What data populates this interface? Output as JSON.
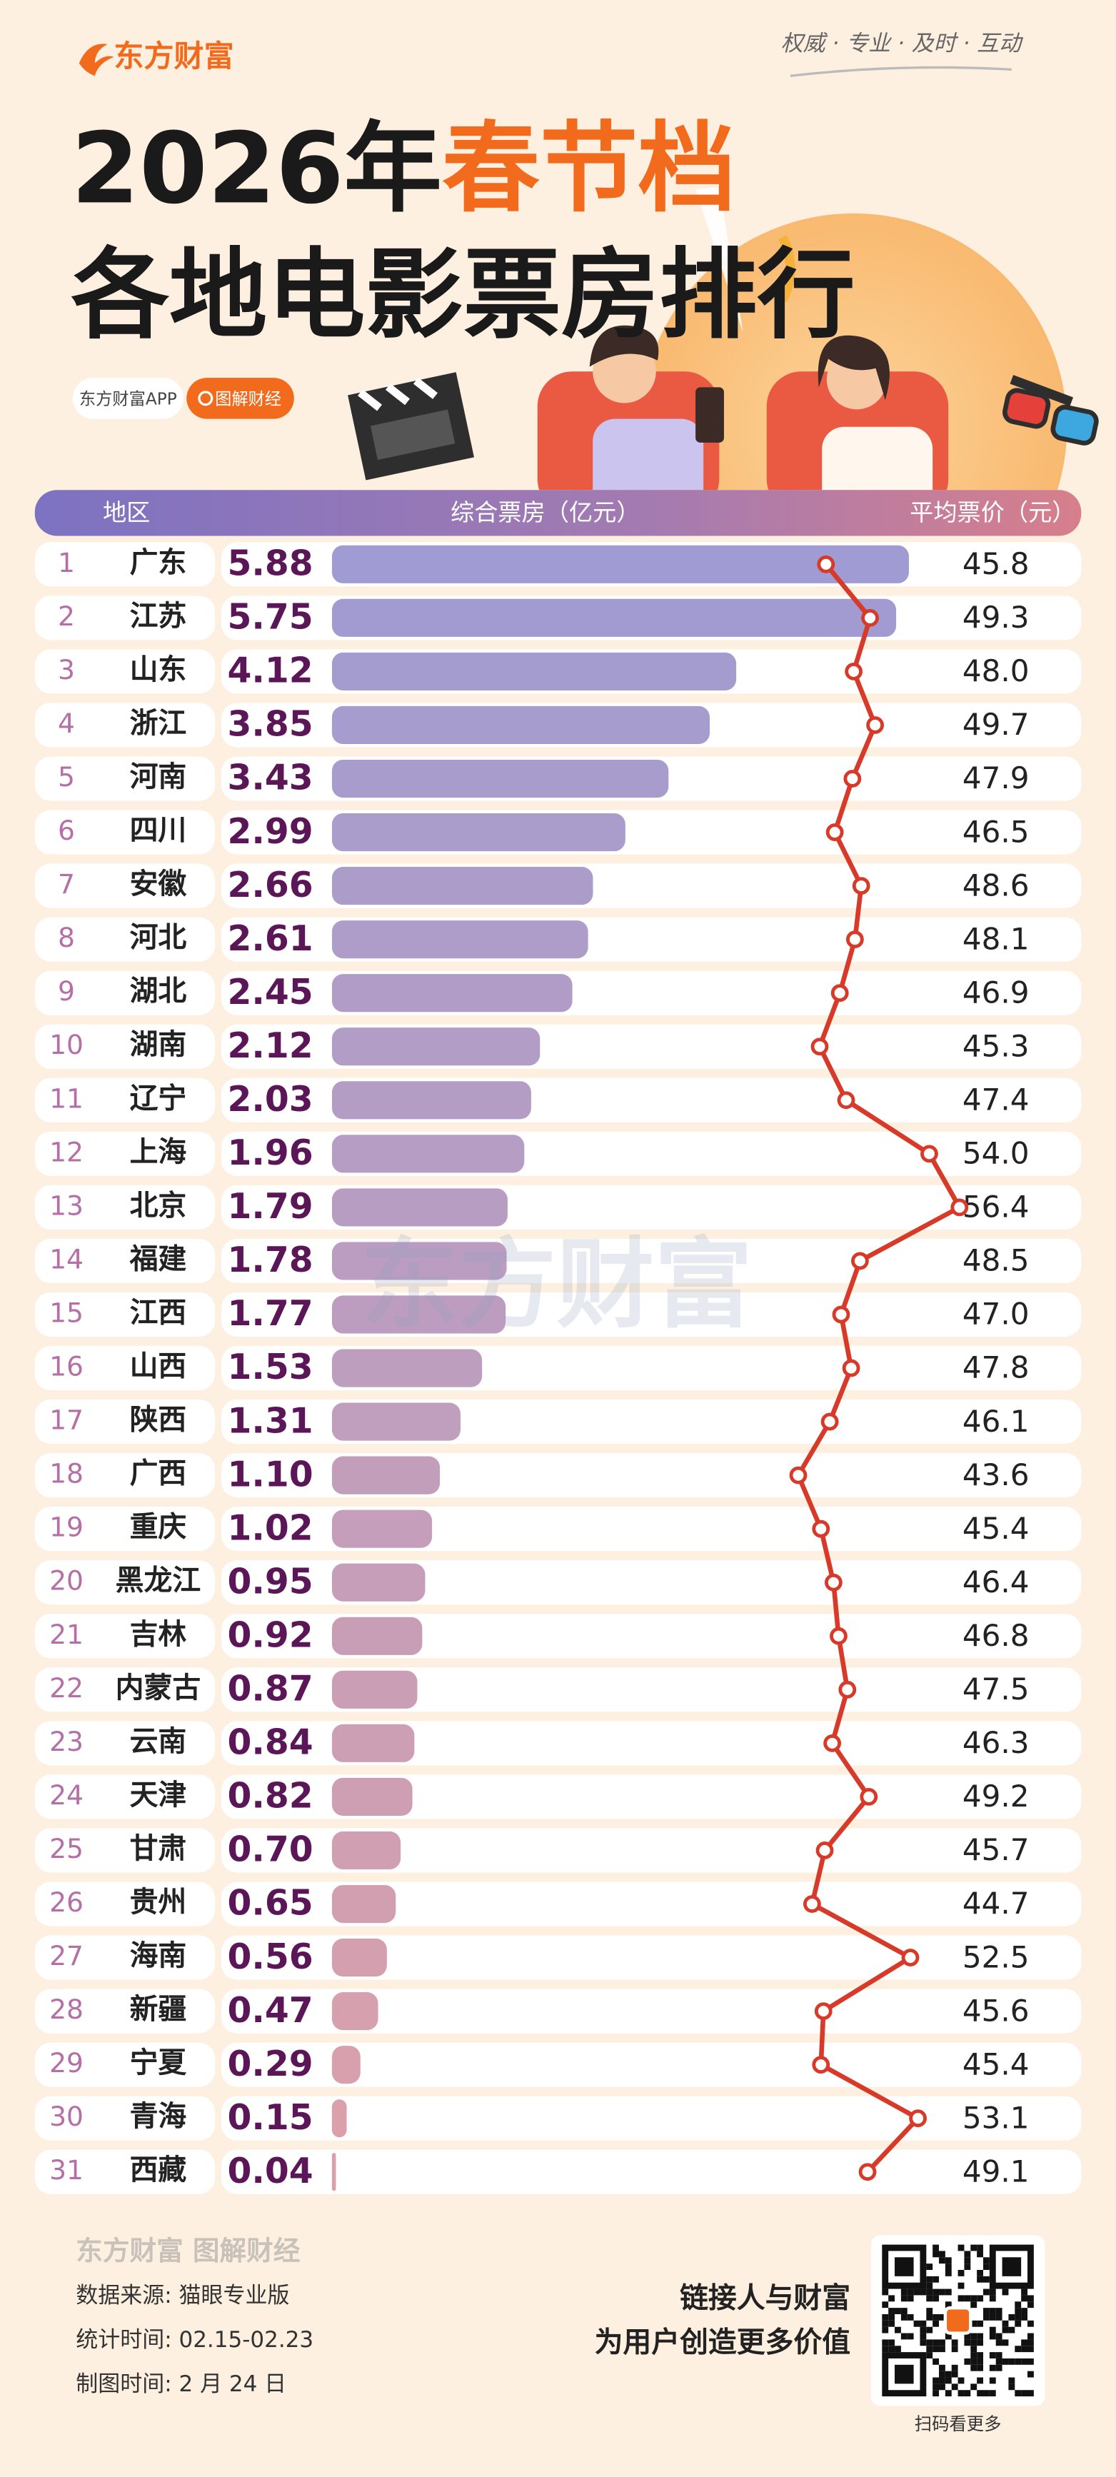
{
  "header": {
    "brand": "东方财富",
    "slogan": "权威 · 专业 · 及时 · 互动",
    "title_part1": "2026年",
    "title_highlight": "春节档",
    "title_line2": "各地电影票房排行",
    "tag_app": "东方财富APP",
    "tag_section": "图解财经"
  },
  "chart_data": {
    "type": "bar-line",
    "category_label": "地区",
    "ranks": [
      1,
      2,
      3,
      4,
      5,
      6,
      7,
      8,
      9,
      10,
      11,
      12,
      13,
      14,
      15,
      16,
      17,
      18,
      19,
      20,
      21,
      22,
      23,
      24,
      25,
      26,
      27,
      28,
      29,
      30,
      31
    ],
    "categories": [
      "广东",
      "江苏",
      "山东",
      "浙江",
      "河南",
      "四川",
      "安徽",
      "河北",
      "湖北",
      "湖南",
      "辽宁",
      "上海",
      "北京",
      "福建",
      "江西",
      "山西",
      "陕西",
      "广西",
      "重庆",
      "黑龙江",
      "吉林",
      "内蒙古",
      "云南",
      "天津",
      "甘肃",
      "贵州",
      "海南",
      "新疆",
      "宁夏",
      "青海",
      "西藏"
    ],
    "series": [
      {
        "name": "综合票房（亿元）",
        "color": "#a09bd2",
        "values": [
          5.88,
          5.75,
          4.12,
          3.85,
          3.43,
          2.99,
          2.66,
          2.61,
          2.45,
          2.12,
          2.03,
          1.96,
          1.79,
          1.78,
          1.77,
          1.53,
          1.31,
          1.1,
          1.02,
          0.95,
          0.92,
          0.87,
          0.84,
          0.82,
          0.7,
          0.65,
          0.56,
          0.47,
          0.29,
          0.15,
          0.04
        ],
        "value_labels": [
          "5.88",
          "5.75",
          "4.12",
          "3.85",
          "3.43",
          "2.99",
          "2.66",
          "2.61",
          "2.45",
          "2.12",
          "2.03",
          "1.96",
          "1.79",
          "1.78",
          "1.77",
          "1.53",
          "1.31",
          "1.10",
          "1.02",
          "0.95",
          "0.92",
          "0.87",
          "0.84",
          "0.82",
          "0.70",
          "0.65",
          "0.56",
          "0.47",
          "0.29",
          "0.15",
          "0.04"
        ]
      },
      {
        "name": "平均票价（元）",
        "color": "#d83a2a",
        "values": [
          45.8,
          49.3,
          48.0,
          49.7,
          47.9,
          46.5,
          48.6,
          48.1,
          46.9,
          45.3,
          47.4,
          54.0,
          56.4,
          48.5,
          47.0,
          47.8,
          46.1,
          43.6,
          45.4,
          46.4,
          46.8,
          47.5,
          46.3,
          49.2,
          45.7,
          44.7,
          52.5,
          45.6,
          45.4,
          53.1,
          49.1
        ],
        "value_labels": [
          "45.8",
          "49.3",
          "48.0",
          "49.7",
          "47.9",
          "46.5",
          "48.6",
          "48.1",
          "46.9",
          "45.3",
          "47.4",
          "54.0",
          "56.4",
          "48.5",
          "47.0",
          "47.8",
          "46.1",
          "43.6",
          "45.4",
          "46.4",
          "46.8",
          "47.5",
          "46.3",
          "49.2",
          "45.7",
          "44.7",
          "52.5",
          "45.6",
          "45.4",
          "53.1",
          "49.1"
        ]
      }
    ],
    "watermark": "东方财富"
  },
  "footer": {
    "logo": "东方财富 图解财经",
    "source": "数据来源: 猫眼专业版",
    "period": "统计时间: 02.15-02.23",
    "made": "制图时间: 2 月 24 日",
    "slogan1": "链接人与财富",
    "slogan2": "为用户创造更多价值",
    "qr_caption": "扫码看更多"
  }
}
